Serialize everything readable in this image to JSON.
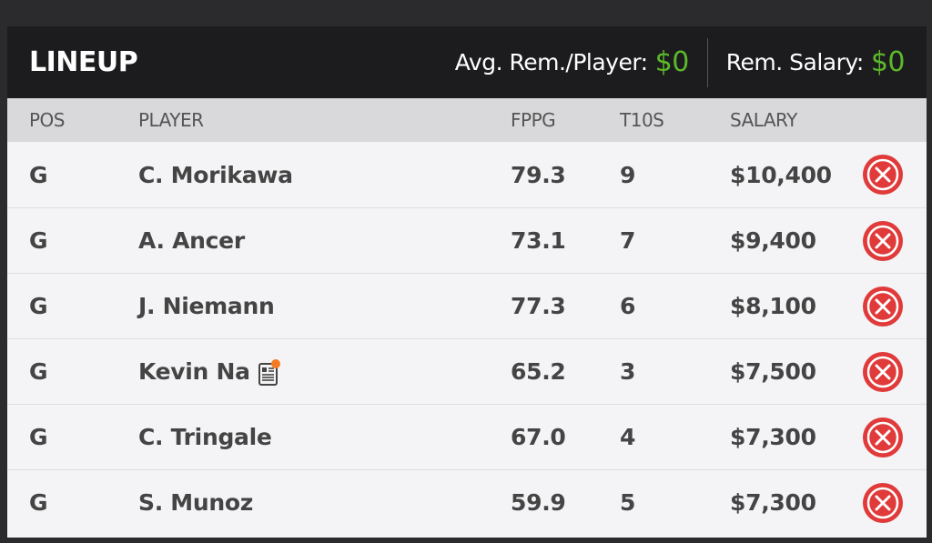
{
  "header": {
    "title": "LINEUP",
    "avg_label": "Avg. Rem./Player:",
    "avg_value": "$0",
    "rem_label": "Rem. Salary:",
    "rem_value": "$0"
  },
  "columns": {
    "pos": "POS",
    "player": "PLAYER",
    "fppg": "FPPG",
    "t10s": "T10S",
    "salary": "SALARY"
  },
  "colors": {
    "accent_green": "#5cb82a",
    "remove_red": "#e03a3a",
    "news_dot": "#f47b20"
  },
  "rows": [
    {
      "pos": "G",
      "player": "C. Morikawa",
      "fppg": "79.3",
      "t10s": "9",
      "salary": "$10,400",
      "news": false
    },
    {
      "pos": "G",
      "player": "A. Ancer",
      "fppg": "73.1",
      "t10s": "7",
      "salary": "$9,400",
      "news": false
    },
    {
      "pos": "G",
      "player": "J. Niemann",
      "fppg": "77.3",
      "t10s": "6",
      "salary": "$8,100",
      "news": false
    },
    {
      "pos": "G",
      "player": "Kevin Na",
      "fppg": "65.2",
      "t10s": "3",
      "salary": "$7,500",
      "news": true
    },
    {
      "pos": "G",
      "player": "C. Tringale",
      "fppg": "67.0",
      "t10s": "4",
      "salary": "$7,300",
      "news": false
    },
    {
      "pos": "G",
      "player": "S. Munoz",
      "fppg": "59.9",
      "t10s": "5",
      "salary": "$7,300",
      "news": false
    }
  ]
}
